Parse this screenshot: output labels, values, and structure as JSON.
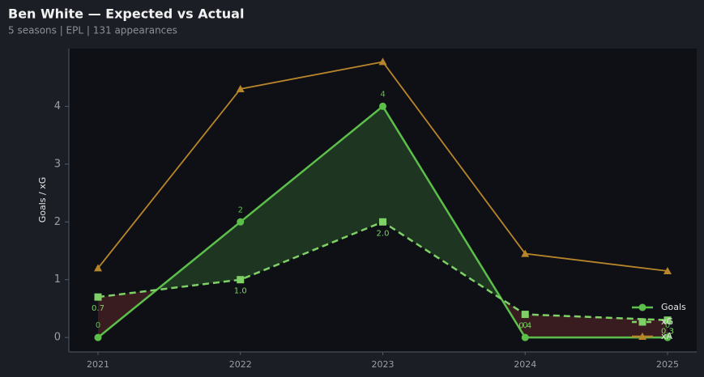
{
  "chart_data": {
    "type": "line",
    "title": "Ben White — Expected vs Actual",
    "subtitle": "5 seasons | EPL | 131 appearances",
    "y_label": "Goals / xG",
    "categories": [
      "2021",
      "2022",
      "2023",
      "2024",
      "2025"
    ],
    "series": [
      {
        "name": "Goals",
        "color": "#5cbf4a",
        "dash": false,
        "marker": "circle",
        "values": [
          0,
          2,
          4,
          0,
          0
        ],
        "value_labels": [
          "0",
          "2",
          "4",
          "0",
          "0"
        ]
      },
      {
        "name": "xG",
        "color": "#7fd066",
        "dash": true,
        "marker": "square",
        "values": [
          0.7,
          1.0,
          2.0,
          0.4,
          0.3
        ],
        "value_labels": [
          "0.7",
          "1.0",
          "2.0",
          "0.4",
          "0.3"
        ]
      },
      {
        "name": "xA",
        "color": "#b7852a",
        "dash": false,
        "marker": "triangle",
        "values": [
          1.2,
          4.3,
          4.77,
          1.45,
          1.15
        ]
      }
    ],
    "ylim": [
      -0.25,
      5.0
    ],
    "yticks": [
      0,
      1,
      2,
      3,
      4
    ],
    "legend": "lower right"
  }
}
